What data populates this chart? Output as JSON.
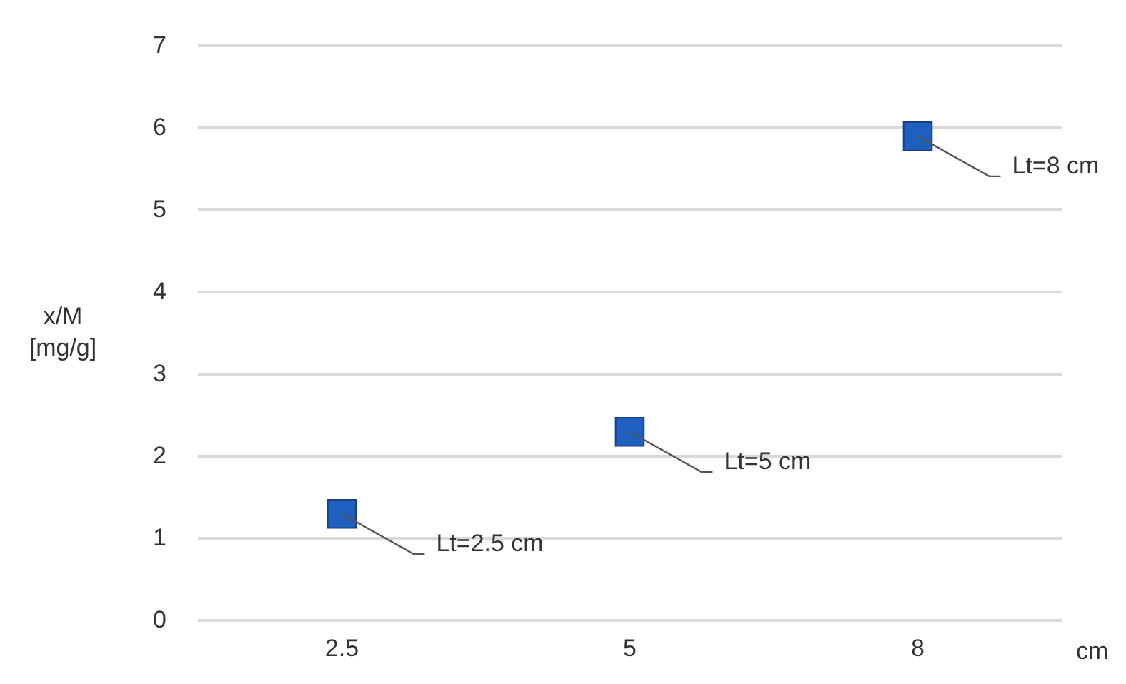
{
  "chart_data": {
    "type": "scatter",
    "xlabel": "cm",
    "ylabel": "x/M [mg/g]",
    "categories": [
      "2.5",
      "5",
      "8"
    ],
    "series": [
      {
        "color": "#1f5fbf",
        "values": [
          1.3,
          2.3,
          5.9
        ]
      }
    ],
    "ylim": [
      0,
      7
    ],
    "yticks": [
      0,
      1,
      2,
      3,
      4,
      5,
      6,
      7
    ],
    "grid": "y",
    "legend": false,
    "marker": "square",
    "annotations": [
      {
        "text": "Lt=2.5 cm",
        "x": "2.5",
        "y": 1.3
      },
      {
        "text": "Lt=5 cm",
        "x": "5",
        "y": 2.3
      },
      {
        "text": "Lt=8 cm",
        "x": "8",
        "y": 5.9
      }
    ]
  }
}
